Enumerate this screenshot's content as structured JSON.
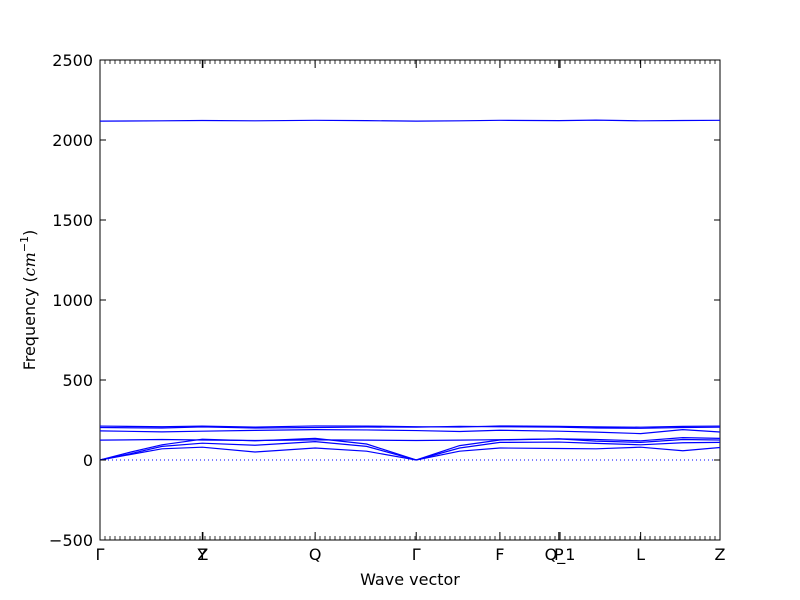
{
  "chart_data": {
    "type": "line",
    "title": "",
    "xlabel": "Wave vector",
    "ylabel_text": "Frequency (",
    "ylabel_unit": "cm",
    "ylabel_exp": "−1",
    "ylabel_close": ")",
    "ylim": [
      -500,
      2500
    ],
    "yticks": [
      -500,
      0,
      500,
      1000,
      1500,
      2000,
      2500
    ],
    "xlim": [
      0,
      1
    ],
    "xticks": [
      {
        "x": 0.0,
        "label": "Γ"
      },
      {
        "x": 0.165,
        "label": "Y"
      },
      {
        "x": 0.166,
        "label": "Z"
      },
      {
        "x": 0.347,
        "label": "Q"
      },
      {
        "x": 0.51,
        "label": "Γ"
      },
      {
        "x": 0.645,
        "label": "F"
      },
      {
        "x": 0.74,
        "label": "P"
      },
      {
        "x": 0.742,
        "label": "Q_1"
      },
      {
        "x": 0.872,
        "label": "L"
      },
      {
        "x": 1.0,
        "label": "Z"
      }
    ],
    "grid": false,
    "legend": "none",
    "line_color": "#0000ff",
    "zero_line": {
      "y": 0,
      "style": "dotted"
    },
    "series": [
      {
        "x": [
          0,
          0.1,
          0.165,
          0.25,
          0.347,
          0.43,
          0.51,
          0.58,
          0.645,
          0.74,
          0.8,
          0.872,
          0.94,
          1.0
        ],
        "y": [
          2118,
          2120,
          2122,
          2120,
          2123,
          2121,
          2118,
          2120,
          2123,
          2121,
          2124,
          2120,
          2122,
          2123
        ]
      },
      {
        "x": [
          0,
          0.1,
          0.165,
          0.25,
          0.347,
          0.43,
          0.51,
          0.58,
          0.645,
          0.74,
          0.8,
          0.872,
          0.94,
          1.0
        ],
        "y": [
          212,
          208,
          212,
          206,
          213,
          212,
          208,
          206,
          213,
          210,
          207,
          205,
          210,
          212
        ]
      },
      {
        "x": [
          0,
          0.1,
          0.165,
          0.25,
          0.347,
          0.43,
          0.51,
          0.58,
          0.645,
          0.74,
          0.8,
          0.872,
          0.94,
          1.0
        ],
        "y": [
          203,
          200,
          207,
          200,
          203,
          206,
          205,
          210,
          208,
          205,
          200,
          198,
          203,
          205
        ]
      },
      {
        "x": [
          0,
          0.1,
          0.165,
          0.25,
          0.347,
          0.43,
          0.51,
          0.58,
          0.645,
          0.74,
          0.8,
          0.872,
          0.94,
          1.0
        ],
        "y": [
          182,
          176,
          180,
          185,
          190,
          188,
          184,
          178,
          186,
          180,
          174,
          165,
          190,
          175
        ]
      },
      {
        "x": [
          0,
          0.1,
          0.165,
          0.25,
          0.347,
          0.43,
          0.51,
          0.58,
          0.645,
          0.74,
          0.8,
          0.872,
          0.94,
          1.0
        ],
        "y": [
          124,
          128,
          125,
          122,
          126,
          124,
          122,
          124,
          127,
          132,
          128,
          120,
          140,
          135
        ]
      },
      {
        "x": [
          0,
          0.05,
          0.1,
          0.165,
          0.25,
          0.347,
          0.43,
          0.51,
          0.58,
          0.645,
          0.74,
          0.8,
          0.872,
          0.94,
          1.0
        ],
        "y": [
          0,
          50,
          95,
          130,
          120,
          135,
          100,
          0,
          90,
          125,
          132,
          118,
          110,
          128,
          125
        ]
      },
      {
        "x": [
          0,
          0.05,
          0.1,
          0.165,
          0.25,
          0.347,
          0.43,
          0.51,
          0.58,
          0.645,
          0.74,
          0.8,
          0.872,
          0.94,
          1.0
        ],
        "y": [
          0,
          40,
          85,
          105,
          92,
          115,
          85,
          0,
          75,
          110,
          112,
          104,
          95,
          108,
          110
        ]
      },
      {
        "x": [
          0,
          0.05,
          0.1,
          0.165,
          0.25,
          0.347,
          0.43,
          0.51,
          0.58,
          0.645,
          0.74,
          0.8,
          0.872,
          0.94,
          1.0
        ],
        "y": [
          0,
          35,
          70,
          80,
          50,
          75,
          55,
          0,
          55,
          75,
          72,
          70,
          80,
          58,
          78
        ]
      }
    ]
  }
}
